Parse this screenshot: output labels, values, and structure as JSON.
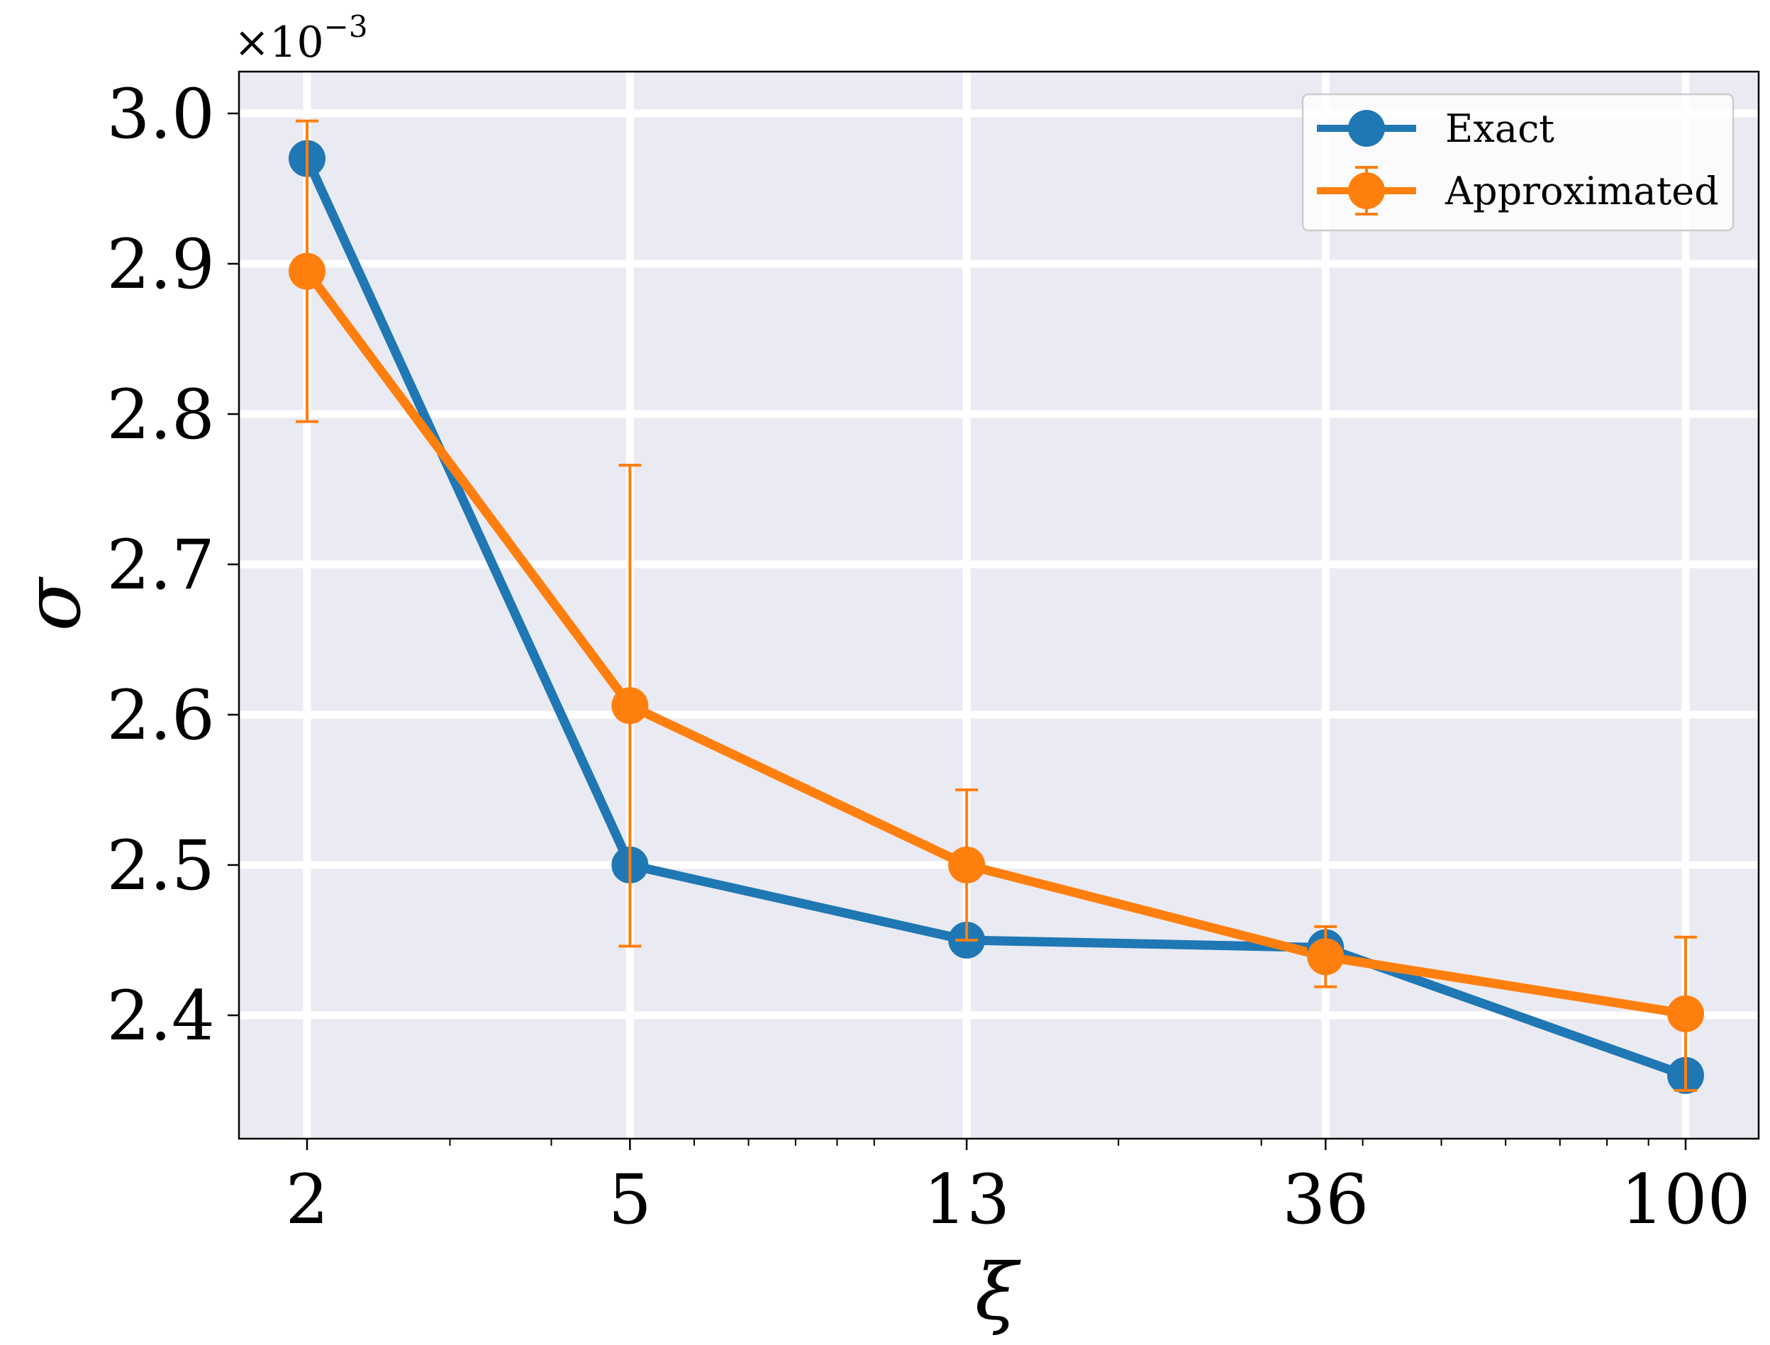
{
  "chart_data": {
    "type": "line",
    "xscale": "log",
    "x": [
      2,
      5,
      13,
      36,
      100
    ],
    "xticklabels": [
      "2",
      "5",
      "13",
      "36",
      "100"
    ],
    "yticklabels": [
      "2.4",
      "2.5",
      "2.6",
      "2.7",
      "2.8",
      "2.9",
      "3.0"
    ],
    "yticks": [
      2.4,
      2.5,
      2.6,
      2.7,
      2.8,
      2.9,
      3.0
    ],
    "ylim": [
      2.32,
      3.028
    ],
    "xlabel": "ξ",
    "ylabel": "σ",
    "offset_text": "×10",
    "offset_exponent": "−3",
    "grid": true,
    "legend_position": "top-right",
    "series": [
      {
        "name": "Exact",
        "color": "#1f77b4",
        "values": [
          2.97,
          2.5,
          2.45,
          2.445,
          2.36
        ]
      },
      {
        "name": "Approximated",
        "color": "#ff7f0e",
        "values": [
          2.895,
          2.606,
          2.5,
          2.439,
          2.401
        ],
        "errors": [
          0.1,
          0.16,
          0.05,
          0.02,
          0.051
        ]
      }
    ]
  }
}
